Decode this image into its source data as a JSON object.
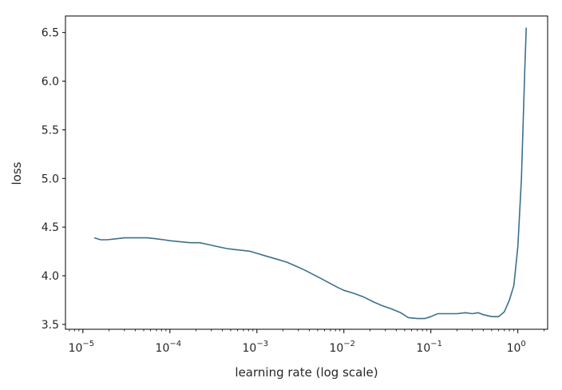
{
  "chart_data": {
    "type": "line",
    "title": "",
    "xlabel": "learning rate (log scale)",
    "ylabel": "loss",
    "xscale": "log",
    "xlim": [
      6.3e-06,
      2.2
    ],
    "ylim": [
      3.45,
      6.67
    ],
    "grid": false,
    "line_color": "#3c6f8c",
    "x_ticks": [
      {
        "value": 1e-05,
        "base": "10",
        "exp": "−5"
      },
      {
        "value": 0.0001,
        "base": "10",
        "exp": "−4"
      },
      {
        "value": 0.001,
        "base": "10",
        "exp": "−3"
      },
      {
        "value": 0.01,
        "base": "10",
        "exp": "−2"
      },
      {
        "value": 0.1,
        "base": "10",
        "exp": "−1"
      },
      {
        "value": 1,
        "base": "10",
        "exp": "0"
      }
    ],
    "y_ticks": [
      {
        "value": 3.5,
        "label": "3.5"
      },
      {
        "value": 4.0,
        "label": "4.0"
      },
      {
        "value": 4.5,
        "label": "4.5"
      },
      {
        "value": 5.0,
        "label": "5.0"
      },
      {
        "value": 5.5,
        "label": "5.5"
      },
      {
        "value": 6.0,
        "label": "6.0"
      },
      {
        "value": 6.5,
        "label": "6.5"
      }
    ],
    "series": [
      {
        "x": [
          1.35e-05,
          1.6e-05,
          1.9e-05,
          2.4e-05,
          3e-05,
          4e-05,
          5.5e-05,
          7e-05,
          8.5e-05,
          0.0001,
          0.00013,
          0.00017,
          0.00022,
          0.00028,
          0.00035,
          0.00045,
          0.00055,
          0.0007,
          0.00085,
          0.001,
          0.0013,
          0.0017,
          0.0022,
          0.0028,
          0.0035,
          0.0045,
          0.0055,
          0.007,
          0.0085,
          0.01,
          0.013,
          0.017,
          0.022,
          0.028,
          0.035,
          0.045,
          0.055,
          0.07,
          0.085,
          0.1,
          0.12,
          0.15,
          0.2,
          0.25,
          0.3,
          0.35,
          0.4,
          0.5,
          0.6,
          0.7,
          0.8,
          0.9,
          1.0,
          1.1,
          1.2,
          1.25
        ],
        "y": [
          4.39,
          4.37,
          4.37,
          4.38,
          4.39,
          4.39,
          4.39,
          4.38,
          4.37,
          4.36,
          4.35,
          4.34,
          4.34,
          4.32,
          4.3,
          4.28,
          4.27,
          4.26,
          4.25,
          4.23,
          4.2,
          4.17,
          4.14,
          4.1,
          4.06,
          4.01,
          3.97,
          3.92,
          3.88,
          3.85,
          3.82,
          3.78,
          3.73,
          3.69,
          3.66,
          3.62,
          3.57,
          3.56,
          3.56,
          3.58,
          3.61,
          3.61,
          3.61,
          3.62,
          3.61,
          3.62,
          3.6,
          3.58,
          3.58,
          3.63,
          3.75,
          3.9,
          4.3,
          5.0,
          6.1,
          6.55
        ]
      }
    ]
  }
}
